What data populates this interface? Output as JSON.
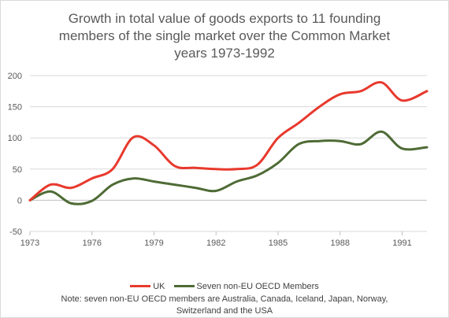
{
  "chart_data": {
    "type": "line",
    "title": "Growth in total value of goods exports to 11 founding\nmembers of the single market over the Common Market\nyears 1973-1992",
    "xlabel": "",
    "ylabel": "",
    "xlim": [
      1973,
      1992.2
    ],
    "ylim": [
      -50,
      200
    ],
    "x_ticks": [
      "1973",
      "1976",
      "1979",
      "1982",
      "1985",
      "1988",
      "1991"
    ],
    "y_ticks": [
      "200",
      "150",
      "100",
      "50",
      "0",
      "-50"
    ],
    "grid": true,
    "legend_position": "bottom",
    "x": [
      1973,
      1974,
      1975,
      1976,
      1977,
      1978,
      1979,
      1980,
      1981,
      1982,
      1983,
      1984,
      1985,
      1986,
      1987,
      1988,
      1989,
      1990,
      1991,
      1992.2
    ],
    "series": [
      {
        "name": "UK",
        "color": "#e8392d",
        "values": [
          0,
          25,
          20,
          35,
          50,
          101,
          88,
          55,
          52,
          50,
          50,
          57,
          100,
          124,
          150,
          170,
          175,
          189,
          160,
          175
        ]
      },
      {
        "name": "Seven non-EU OECD Members",
        "color": "#4e6b35",
        "values": [
          0,
          14,
          -5,
          -1,
          25,
          35,
          30,
          25,
          20,
          15,
          30,
          40,
          60,
          90,
          95,
          95,
          90,
          110,
          83,
          85
        ]
      }
    ]
  },
  "note": "Note: seven non-EU OECD members are Australia, Canada, Iceland, Japan, Norway, Switzerland and the USA"
}
